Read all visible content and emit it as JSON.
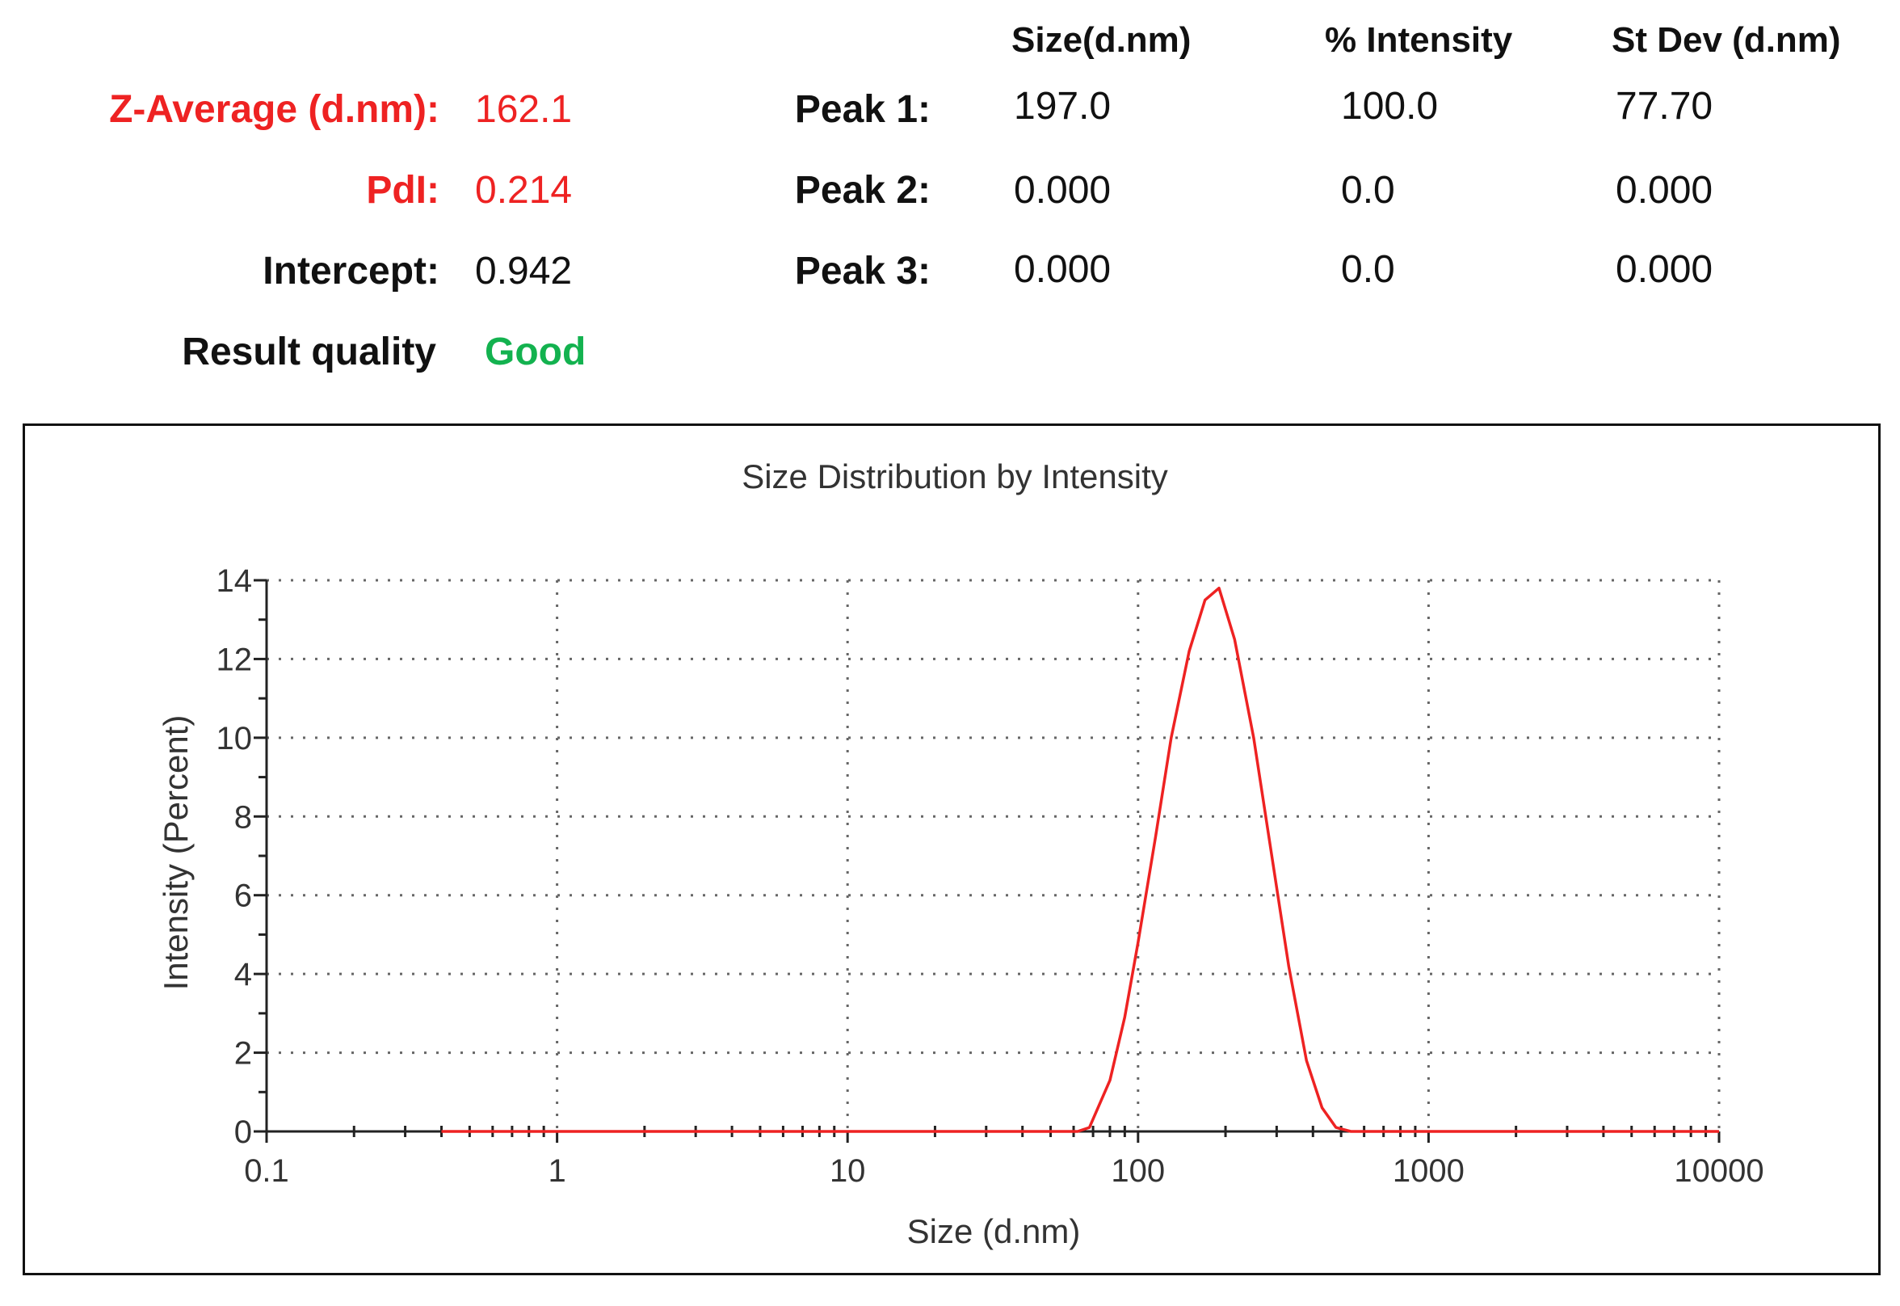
{
  "table": {
    "headers": {
      "size": "Size(d.nm)",
      "intensity": "% Intensity",
      "stdev": "St Dev (d.nm)"
    },
    "left": [
      {
        "label": "Z-Average (d.nm):",
        "value": "162.1",
        "color": "#ee2222"
      },
      {
        "label": "PdI:",
        "value": "0.214",
        "color": "#ee2222"
      },
      {
        "label": "Intercept:",
        "value": "0.942",
        "color": "#111111"
      },
      {
        "label": "Result quality",
        "value": "Good",
        "color": "#13b24f"
      }
    ],
    "peaks": [
      {
        "label": "Peak 1:",
        "size": "197.0",
        "intensity": "100.0",
        "stdev": "77.70"
      },
      {
        "label": "Peak 2:",
        "size": "0.000",
        "intensity": "0.0",
        "stdev": "0.000"
      },
      {
        "label": "Peak 3:",
        "size": "0.000",
        "intensity": "0.0",
        "stdev": "0.000"
      }
    ]
  },
  "chart_data": {
    "type": "line",
    "title": "Size Distribution by Intensity",
    "xlabel": "Size (d.nm)",
    "ylabel": "Intensity (Percent)",
    "xscale": "log",
    "xlim": [
      0.1,
      10000
    ],
    "ylim": [
      0,
      14
    ],
    "x_ticks": [
      "0.1",
      "1",
      "10",
      "100",
      "1000",
      "10000"
    ],
    "y_ticks": [
      "0",
      "2",
      "4",
      "6",
      "8",
      "10",
      "12",
      "14"
    ],
    "grid": true,
    "line_color": "#ee2222",
    "series": [
      {
        "x": [
          0.4,
          1,
          10,
          40,
          62,
          68,
          80,
          90,
          100,
          115,
          130,
          150,
          170,
          190,
          215,
          250,
          290,
          330,
          380,
          430,
          480,
          540,
          600,
          1000,
          10000
        ],
        "y": [
          0,
          0,
          0,
          0,
          0,
          0.1,
          1.3,
          2.9,
          4.8,
          7.5,
          10,
          12.2,
          13.5,
          13.8,
          12.5,
          10,
          6.9,
          4.2,
          1.8,
          0.6,
          0.1,
          0,
          0,
          0,
          0
        ]
      }
    ]
  }
}
